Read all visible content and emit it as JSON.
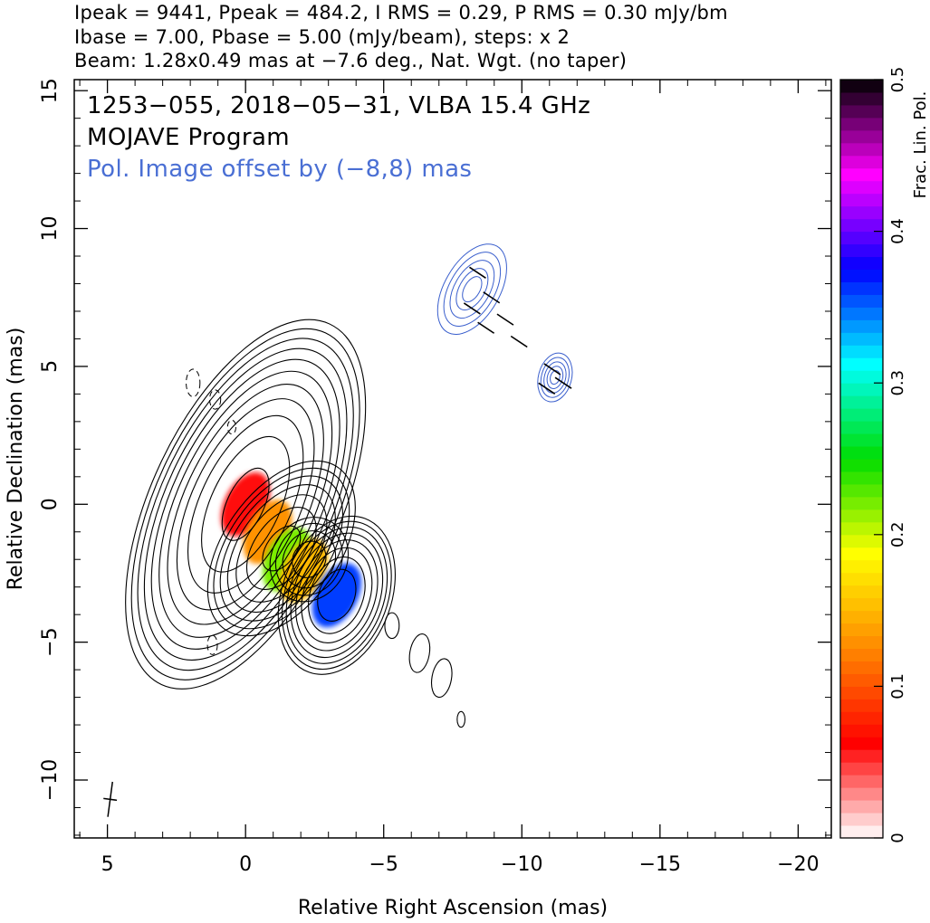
{
  "header": {
    "line1": "Ipeak = 9441, Ppeak = 484.2, I RMS = 0.29, P RMS = 0.30 mJy/bm",
    "line2": "Ibase = 7.00, Pbase = 5.00 (mJy/beam), steps: x 2",
    "line3": "Beam: 1.28x0.49 mas at −7.6 deg., Nat. Wgt. (no taper)"
  },
  "annotations": {
    "source_line": "1253−055, 2018−05−31, VLBA 15.4 GHz",
    "program_line": "MOJAVE Program",
    "offset_line": "Pol. Image offset by (−8,8) mas",
    "offset_color": "#4a6fd4"
  },
  "chart_data": {
    "type": "heatmap",
    "xlabel": "Relative Right Ascension (mas)",
    "ylabel": "Relative Declination (mas)",
    "xlim": [
      6.2,
      -21.2
    ],
    "ylim": [
      -12.1,
      15.4
    ],
    "x_ticks": [
      5,
      0,
      -5,
      -10,
      -15,
      -20
    ],
    "x_tick_labels": [
      "5",
      "0",
      "−5",
      "−10",
      "−15",
      "−20"
    ],
    "y_ticks": [
      -10,
      -5,
      0,
      5,
      10,
      15
    ],
    "y_tick_labels": [
      "−10",
      "−5",
      "0",
      "5",
      "10",
      "15"
    ],
    "colorbar": {
      "label": "Frac. Lin. Pol.",
      "range": [
        0,
        0.5
      ],
      "ticks": [
        0,
        0.1,
        0.2,
        0.3,
        0.4,
        0.5
      ],
      "tick_labels": [
        "0",
        "0.1",
        "0.2",
        "0.3",
        "0.4",
        "0.5"
      ],
      "colormap": [
        "#ffffff",
        "#ff0000",
        "#ff8800",
        "#ffff00",
        "#00dd00",
        "#00ffff",
        "#0000ff",
        "#ff00ff",
        "#000000"
      ]
    },
    "stokes_i_contour_components": [
      {
        "x": 0.0,
        "y": 0.0,
        "sx": 0.9,
        "sy": 1.9,
        "pa": 25,
        "flux": 9441
      },
      {
        "x": -1.3,
        "y": -1.6,
        "sx": 0.7,
        "sy": 1.2,
        "pa": 35,
        "flux": 600
      },
      {
        "x": -2.3,
        "y": -2.0,
        "sx": 0.6,
        "sy": 0.7,
        "pa": 30,
        "flux": 90
      },
      {
        "x": -3.3,
        "y": -3.3,
        "sx": 0.6,
        "sy": 0.9,
        "pa": 20,
        "flux": 1600
      },
      {
        "x": -5.3,
        "y": -4.4,
        "sx": 0.25,
        "sy": 0.45,
        "pa": 0,
        "flux": 12
      },
      {
        "x": -6.3,
        "y": -5.4,
        "sx": 0.3,
        "sy": 0.6,
        "pa": 10,
        "flux": 14
      },
      {
        "x": -7.1,
        "y": -6.3,
        "sx": 0.3,
        "sy": 0.6,
        "pa": 10,
        "flux": 14
      },
      {
        "x": -7.8,
        "y": -7.8,
        "sx": 0.2,
        "sy": 0.4,
        "pa": 0,
        "flux": 9
      }
    ],
    "contour_levels_mjy": [
      7,
      14,
      28,
      56,
      112,
      224,
      448,
      896,
      1792,
      3584,
      7168
    ],
    "frac_pol_components": [
      {
        "x": 0.0,
        "y": 0.0,
        "value": 0.06
      },
      {
        "x": -0.8,
        "y": -1.0,
        "value": 0.13
      },
      {
        "x": -1.5,
        "y": -2.0,
        "value": 0.22
      },
      {
        "x": -2.1,
        "y": -2.4,
        "value": 0.15
      },
      {
        "x": -3.3,
        "y": -3.3,
        "value": 0.36
      }
    ],
    "pol_offset_mas": [
      -8,
      8
    ],
    "beam": {
      "major_mas": 1.28,
      "minor_mas": 0.49,
      "pa_deg": -7.6
    }
  }
}
